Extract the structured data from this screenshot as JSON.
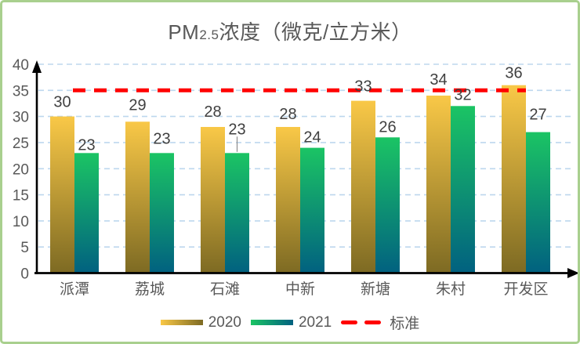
{
  "frame": {
    "border_color": "#A9D08E",
    "background": "#FFFFFF"
  },
  "title": {
    "prefix": "PM",
    "subscript": "2.5",
    "suffix": "浓度（微克/立方米）",
    "color": "#595959"
  },
  "chart_data": {
    "type": "bar",
    "title": "PM2.5浓度（微克/立方米）",
    "categories": [
      "派潭",
      "荔城",
      "石滩",
      "中新",
      "新塘",
      "朱村",
      "开发区"
    ],
    "series": [
      {
        "name": "2020",
        "values": [
          30,
          29,
          28,
          28,
          33,
          34,
          36
        ],
        "color_top": "#F9C847",
        "color_bottom": "#7D6A23"
      },
      {
        "name": "2021",
        "values": [
          23,
          23,
          23,
          24,
          26,
          32,
          27
        ],
        "color_top": "#1BC464",
        "color_bottom": "#016180"
      }
    ],
    "reference_line": {
      "name": "标准",
      "value": 35,
      "color": "#FF0000",
      "style": "dashed"
    },
    "xlabel": "",
    "ylabel": "",
    "ylim": [
      0,
      40
    ],
    "ytick_step": 5,
    "grid": true,
    "gridline_color": "#BDD7EE",
    "axis_color": "#000000",
    "tick_label_color": "#595959",
    "data_label_color": "#404040",
    "legend_position": "bottom",
    "label_layout": {
      "gaps": [
        [
          12,
          15,
          13,
          10,
          12,
          14,
          9
        ],
        [
          4,
          12,
          24,
          7,
          7,
          8,
          16
        ]
      ],
      "leader_lines": [
        [
          1,
          2
        ]
      ]
    }
  }
}
